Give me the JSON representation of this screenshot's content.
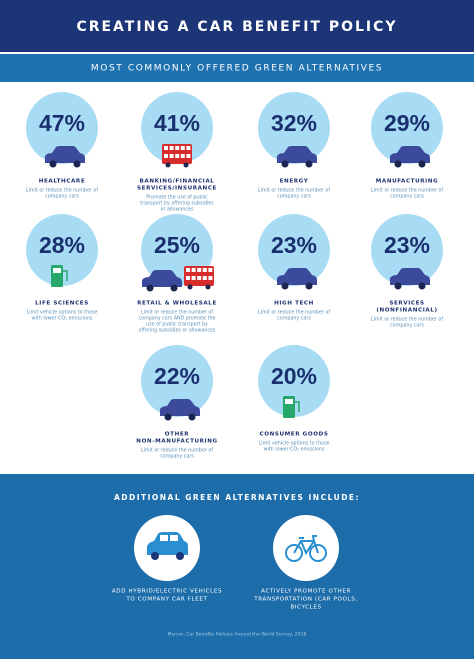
{
  "header": {
    "title": "CREATING A CAR BENEFIT POLICY",
    "subtitle": "MOST COMMONLY OFFERED GREEN ALTERNATIVES"
  },
  "items": [
    {
      "percent": "47%",
      "label": [
        "HEALTHCARE"
      ],
      "desc": [
        "Limit or reduce the number of",
        "company cars"
      ]
    },
    {
      "percent": "41%",
      "label": [
        "BANKING/FINANCIAL",
        "SERVICES/INSURANCE"
      ],
      "desc": [
        "Promote the use of public",
        "transport by offering subsidies",
        "or allowances"
      ]
    },
    {
      "percent": "32%",
      "label": [
        "ENERGY"
      ],
      "desc": [
        "Limit or reduce the number of",
        "company cars"
      ]
    },
    {
      "percent": "29%",
      "label": [
        "MANUFACTURING"
      ],
      "desc": [
        "Limit or reduce the number of",
        "company cars"
      ]
    },
    {
      "percent": "28%",
      "label": [
        "LIFE SCIENCES"
      ],
      "desc": [
        "Limit vehicle options to those",
        "with lower CO₂ emissions"
      ]
    },
    {
      "percent": "25%",
      "label": [
        "RETAIL & WHOLESALE"
      ],
      "desc": [
        "Limit or reduce the number of",
        "company cars AND promote the",
        "use of public transport by",
        "offering subsidies or allowances"
      ]
    },
    {
      "percent": "23%",
      "label": [
        "HIGH TECH"
      ],
      "desc": [
        "Limit or reduce the number of",
        "company cars"
      ]
    },
    {
      "percent": "23%",
      "label": [
        "SERVICES",
        "(NONFINANCIAL)"
      ],
      "desc": [
        "Limit or reduce the number of",
        "company cars"
      ]
    },
    {
      "percent": "22%",
      "label": [
        "OTHER",
        "NON-MANUFACTURING"
      ],
      "desc": [
        "Limit or reduce the number of",
        "company cars"
      ]
    },
    {
      "percent": "20%",
      "label": [
        "CONSUMER GOODS"
      ],
      "desc": [
        "Limit vehicle options to those",
        "with lower CO₂ emissions"
      ]
    }
  ],
  "additional": {
    "title": "ADDITIONAL GREEN ALTERNATIVES INCLUDE:",
    "items": [
      {
        "lines": [
          "ADD HYBRID/ELECTRIC VEHICLES",
          "TO COMPANY CAR FLEET"
        ]
      },
      {
        "lines": [
          "ACTIVELY PROMOTE OTHER",
          "TRANSPORTATION (CAR POOLS,",
          "BICYCLES"
        ]
      }
    ]
  },
  "footer": {
    "source": "Mercer, Car Benefits Policies Around the World Survey, 2018"
  }
}
